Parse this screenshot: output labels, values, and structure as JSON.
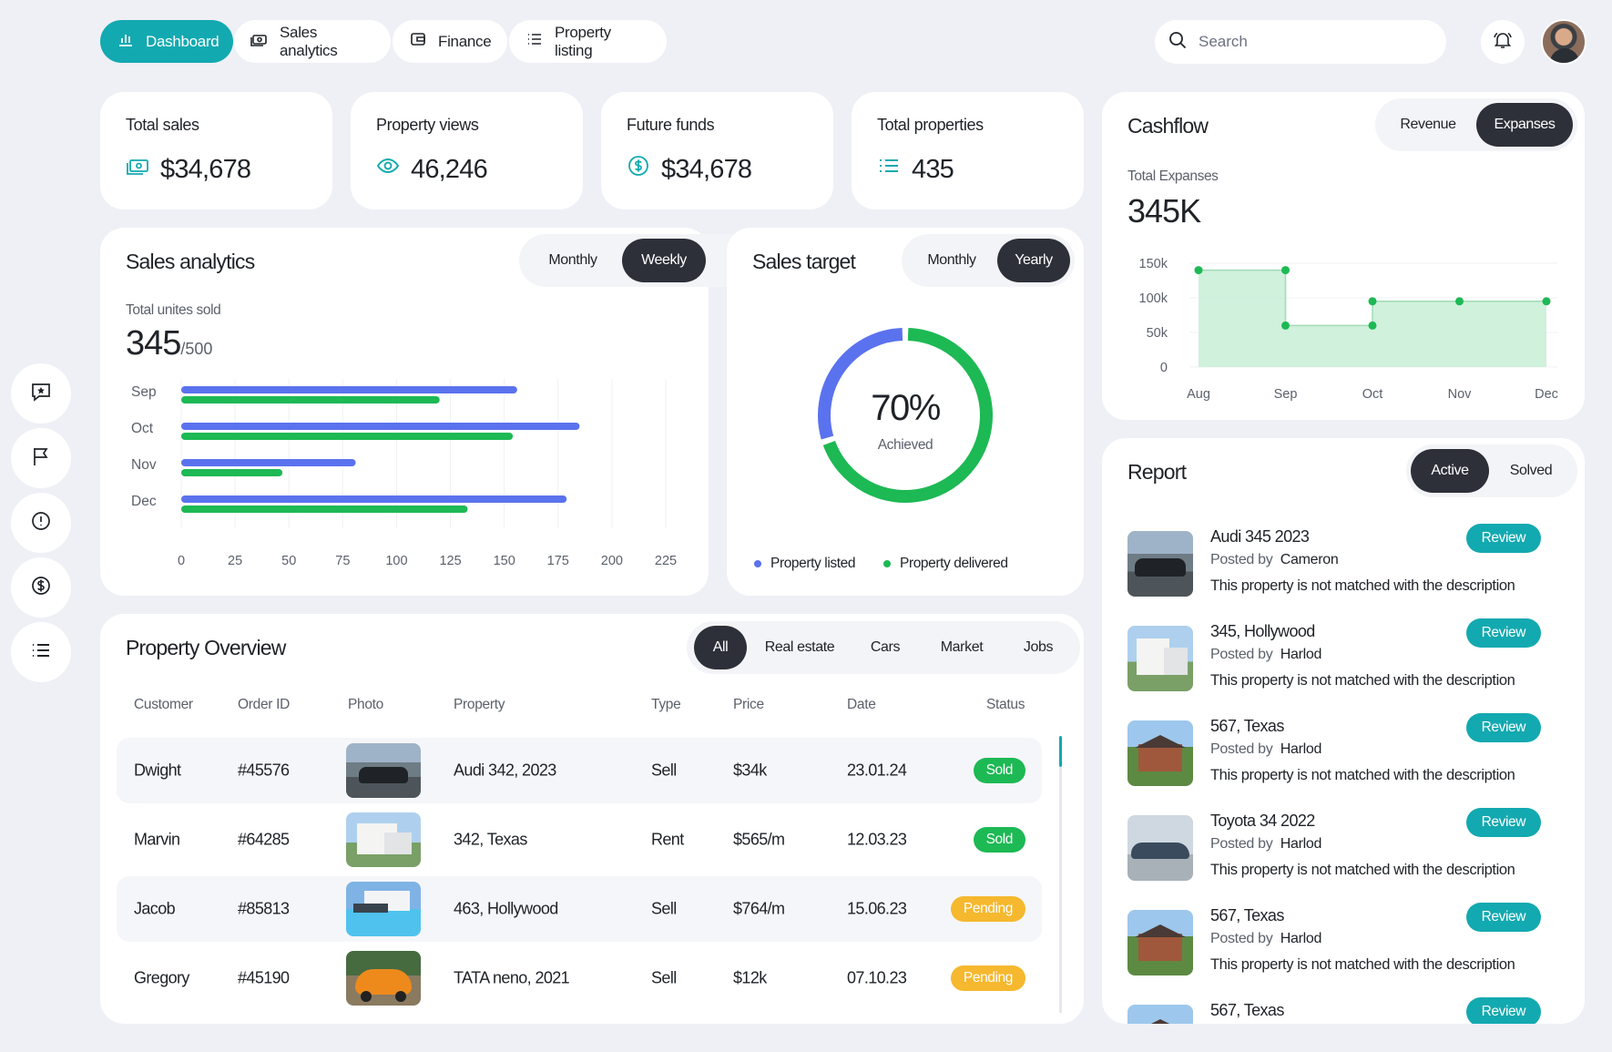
{
  "nav": {
    "tabs": [
      {
        "label": "Dashboard",
        "icon": "bar-chart-icon",
        "active": true
      },
      {
        "label": "Sales analytics",
        "icon": "money-icon"
      },
      {
        "label": "Finance",
        "icon": "wallet-icon"
      },
      {
        "label": "Property listing",
        "icon": "list-icon"
      }
    ],
    "search_placeholder": "Search"
  },
  "sidebar": {
    "icons": [
      "message-star-icon",
      "flag-icon",
      "alert-circle-icon",
      "dollar-circle-icon",
      "list-icon"
    ]
  },
  "stats": [
    {
      "title": "Total sales",
      "value": "$34,678",
      "icon": "money-icon"
    },
    {
      "title": "Property views",
      "value": "46,246",
      "icon": "eye-icon"
    },
    {
      "title": "Future funds",
      "value": "$34,678",
      "icon": "dollar-circle-icon"
    },
    {
      "title": "Total properties",
      "value": "435",
      "icon": "list-icon"
    }
  ],
  "sales_analytics": {
    "title": "Sales analytics",
    "toggle": [
      "Monthly",
      "Weekly"
    ],
    "selected": "Weekly",
    "subtitle": "Total unites sold",
    "value": "345",
    "total": "/500"
  },
  "sales_target": {
    "title": "Sales target",
    "toggle": [
      "Monthly",
      "Yearly"
    ],
    "selected": "Yearly",
    "percent": "70%",
    "caption": "Achieved",
    "legend": [
      "Property listed",
      "Property delivered"
    ]
  },
  "cashflow": {
    "title": "Cashflow",
    "toggle": [
      "Revenue",
      "Expanses"
    ],
    "selected": "Expanses",
    "subtitle": "Total Expanses",
    "value": "345K"
  },
  "property_overview": {
    "title": "Property Overview",
    "filters": [
      "All",
      "Real estate",
      "Cars",
      "Market",
      "Jobs"
    ],
    "selected_filter": "All",
    "columns": [
      "Customer",
      "Order ID",
      "Photo",
      "Property",
      "Type",
      "Price",
      "Date",
      "Status"
    ],
    "rows": [
      {
        "customer": "Dwight",
        "order_id": "#45576",
        "photo": "car-photo",
        "property": "Audi 342, 2023",
        "type": "Sell",
        "price": "$34k",
        "date": "23.01.24",
        "status": "Sold"
      },
      {
        "customer": "Marvin",
        "order_id": "#64285",
        "photo": "house-photo",
        "property": "342, Texas",
        "type": "Rent",
        "price": "$565/m",
        "date": "12.03.23",
        "status": "Sold"
      },
      {
        "customer": "Jacob",
        "order_id": "#85813",
        "photo": "house-photo",
        "property": "463, Hollywood",
        "type": "Sell",
        "price": "$764/m",
        "date": "15.06.23",
        "status": "Pending"
      },
      {
        "customer": "Gregory",
        "order_id": "#45190",
        "photo": "car-photo",
        "property": "TATA neno, 2021",
        "type": "Sell",
        "price": "$12k",
        "date": "07.10.23",
        "status": "Pending"
      }
    ]
  },
  "report": {
    "title": "Report",
    "toggle": [
      "Active",
      "Solved"
    ],
    "selected": "Active",
    "posted_label": "Posted by",
    "button_label": "Review",
    "items": [
      {
        "title": "Audi 345 2023",
        "author": "Cameron",
        "desc": "This property is not matched with the description",
        "photo": "car-photo"
      },
      {
        "title": "345, Hollywood",
        "author": "Harlod",
        "desc": "This property is not matched with the description",
        "photo": "house-photo"
      },
      {
        "title": "567, Texas",
        "author": "Harlod",
        "desc": "This property is not matched with the description",
        "photo": "house-photo"
      },
      {
        "title": "Toyota 34 2022",
        "author": "Harlod",
        "desc": "This property is not matched with the description",
        "photo": "car-photo"
      },
      {
        "title": "567, Texas",
        "author": "Harlod",
        "desc": "This property is not matched with the description",
        "photo": "house-photo"
      },
      {
        "title": "567, Texas",
        "author": "",
        "desc": "",
        "photo": "house-photo"
      }
    ]
  },
  "colors": {
    "accent": "#13a9b0",
    "blue": "#5b72ee",
    "green": "#1db954",
    "dark": "#2d3039",
    "pending": "#f5b82e"
  },
  "chart_data": [
    {
      "type": "bar",
      "orientation": "horizontal",
      "categories": [
        "Sep",
        "Oct",
        "Nov",
        "Dec"
      ],
      "series": [
        {
          "color": "#5b72ee",
          "values": [
            156,
            185,
            81,
            179
          ]
        },
        {
          "color": "#1db954",
          "values": [
            120,
            154,
            47,
            133
          ]
        }
      ],
      "xticks": [
        "0",
        "25",
        "50",
        "75",
        "100",
        "125",
        "150",
        "175",
        "200",
        "225"
      ],
      "xlim": [
        0,
        225
      ]
    },
    {
      "type": "pie",
      "style": "donut",
      "slices": [
        {
          "label": "Property listed",
          "value": 30,
          "color": "#5b72ee"
        },
        {
          "label": "Property delivered",
          "value": 70,
          "color": "#1db954"
        }
      ]
    },
    {
      "type": "area",
      "style": "step",
      "x": [
        "Aug",
        "Sep",
        "Oct",
        "Nov",
        "Dec"
      ],
      "points": [
        {
          "x": 0,
          "y": 140
        },
        {
          "x": 1,
          "y": 140
        },
        {
          "x": 1,
          "y": 60
        },
        {
          "x": 2,
          "y": 60
        },
        {
          "x": 2,
          "y": 95
        },
        {
          "x": 3,
          "y": 95
        },
        {
          "x": 4,
          "y": 95
        }
      ],
      "yticks": [
        "150k",
        "100k",
        "50k",
        "0"
      ],
      "ylim": [
        0,
        150
      ],
      "color": "#1db954"
    }
  ]
}
